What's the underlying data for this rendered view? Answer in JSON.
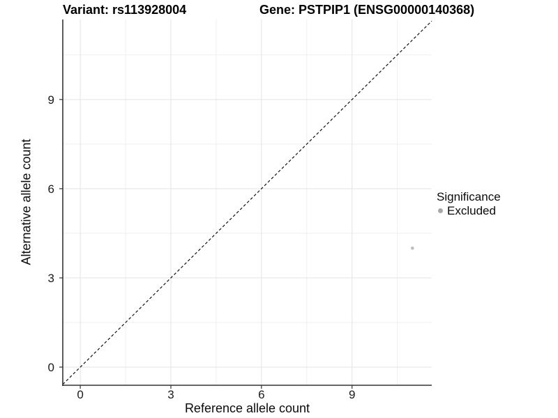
{
  "header": {
    "title_variant": "Variant: rs113928004",
    "title_gene": "Gene: PSTPIP1 (ENSG00000140368)"
  },
  "chart_data": {
    "type": "scatter",
    "title": "Variant: rs113928004 / Gene: PSTPIP1 (ENSG00000140368)",
    "xlabel": "Reference allele count",
    "ylabel": "Alternative allele count",
    "xlim": [
      -0.58,
      11.64
    ],
    "ylim": [
      -0.61,
      11.69
    ],
    "x_major_ticks": [
      0,
      3,
      6,
      9
    ],
    "y_major_ticks": [
      0,
      3,
      6,
      9
    ],
    "x_minor_ticks": [
      1.5,
      4.5,
      7.5,
      10.5
    ],
    "y_minor_ticks": [
      1.5,
      4.5,
      7.5,
      10.5
    ],
    "grid": true,
    "reference_line": {
      "type": "identity",
      "style": "dashed",
      "color": "#111111"
    },
    "series": [
      {
        "name": "Excluded",
        "color": "#bdbdbd",
        "points": [
          {
            "x": 11,
            "y": 4
          }
        ]
      }
    ],
    "legend": {
      "title": "Significance",
      "position": "right",
      "items": [
        {
          "label": "Excluded",
          "color": "#a8a8a8"
        }
      ]
    },
    "colors": {
      "axis_line": "#333333",
      "tick_label": "#1a1a1a",
      "grid_major": "#e3e3e3",
      "grid_minor": "#efefef"
    }
  }
}
